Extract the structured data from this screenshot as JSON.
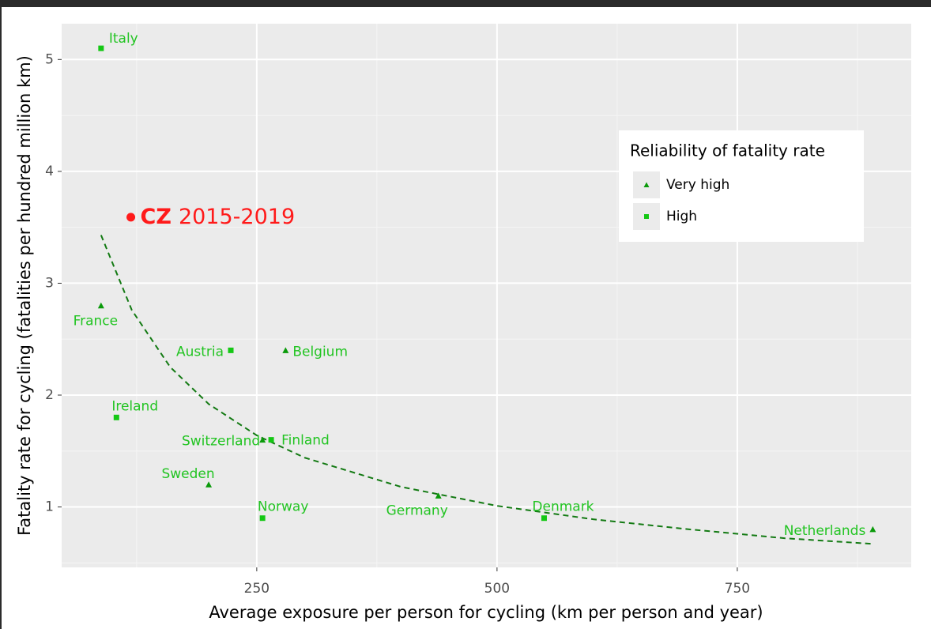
{
  "chart_data": {
    "type": "scatter",
    "x_label": "Average exposure per person for cycling (km per person and year)",
    "y_label": "Fatality rate for cycling (fatalities per hundred million km)",
    "xlim": [
      47,
      931
    ],
    "ylim": [
      0.46,
      5.32
    ],
    "xticks": [
      250,
      500,
      750
    ],
    "yticks": [
      1,
      2,
      3,
      4,
      5
    ],
    "grid": true,
    "legend_title": "Reliability of fatality rate",
    "legend_position": "upper right",
    "series": [
      {
        "name": "Very high",
        "color": "#0a9a0a",
        "marker": "triangle",
        "label_color": "#22c422",
        "labels": [
          "France",
          "Belgium",
          "Switzerland",
          "Sweden",
          "Germany",
          "Netherlands"
        ],
        "x": [
          88,
          280,
          256,
          200,
          439,
          891
        ],
        "values": [
          2.8,
          2.4,
          1.6,
          1.2,
          1.1,
          0.8
        ]
      },
      {
        "name": "High",
        "color": "#14c814",
        "marker": "square",
        "label_color": "#22c422",
        "labels": [
          "Italy",
          "Austria",
          "Ireland",
          "Finland",
          "Norway",
          "Denmark"
        ],
        "x": [
          88,
          223,
          104,
          265,
          256,
          549
        ],
        "values": [
          5.1,
          2.4,
          1.8,
          1.6,
          0.9,
          0.9
        ]
      }
    ],
    "trend": {
      "color": "#137a13",
      "x": [
        88,
        120,
        160,
        200,
        250,
        300,
        400,
        500,
        600,
        700,
        800,
        891
      ],
      "values": [
        3.43,
        2.76,
        2.25,
        1.92,
        1.64,
        1.44,
        1.18,
        1.01,
        0.89,
        0.8,
        0.72,
        0.67
      ]
    },
    "annotation": {
      "bold": "CZ",
      "text": "2015-2019",
      "x": 119,
      "y": 3.59,
      "color": "#ff1a1a"
    }
  }
}
